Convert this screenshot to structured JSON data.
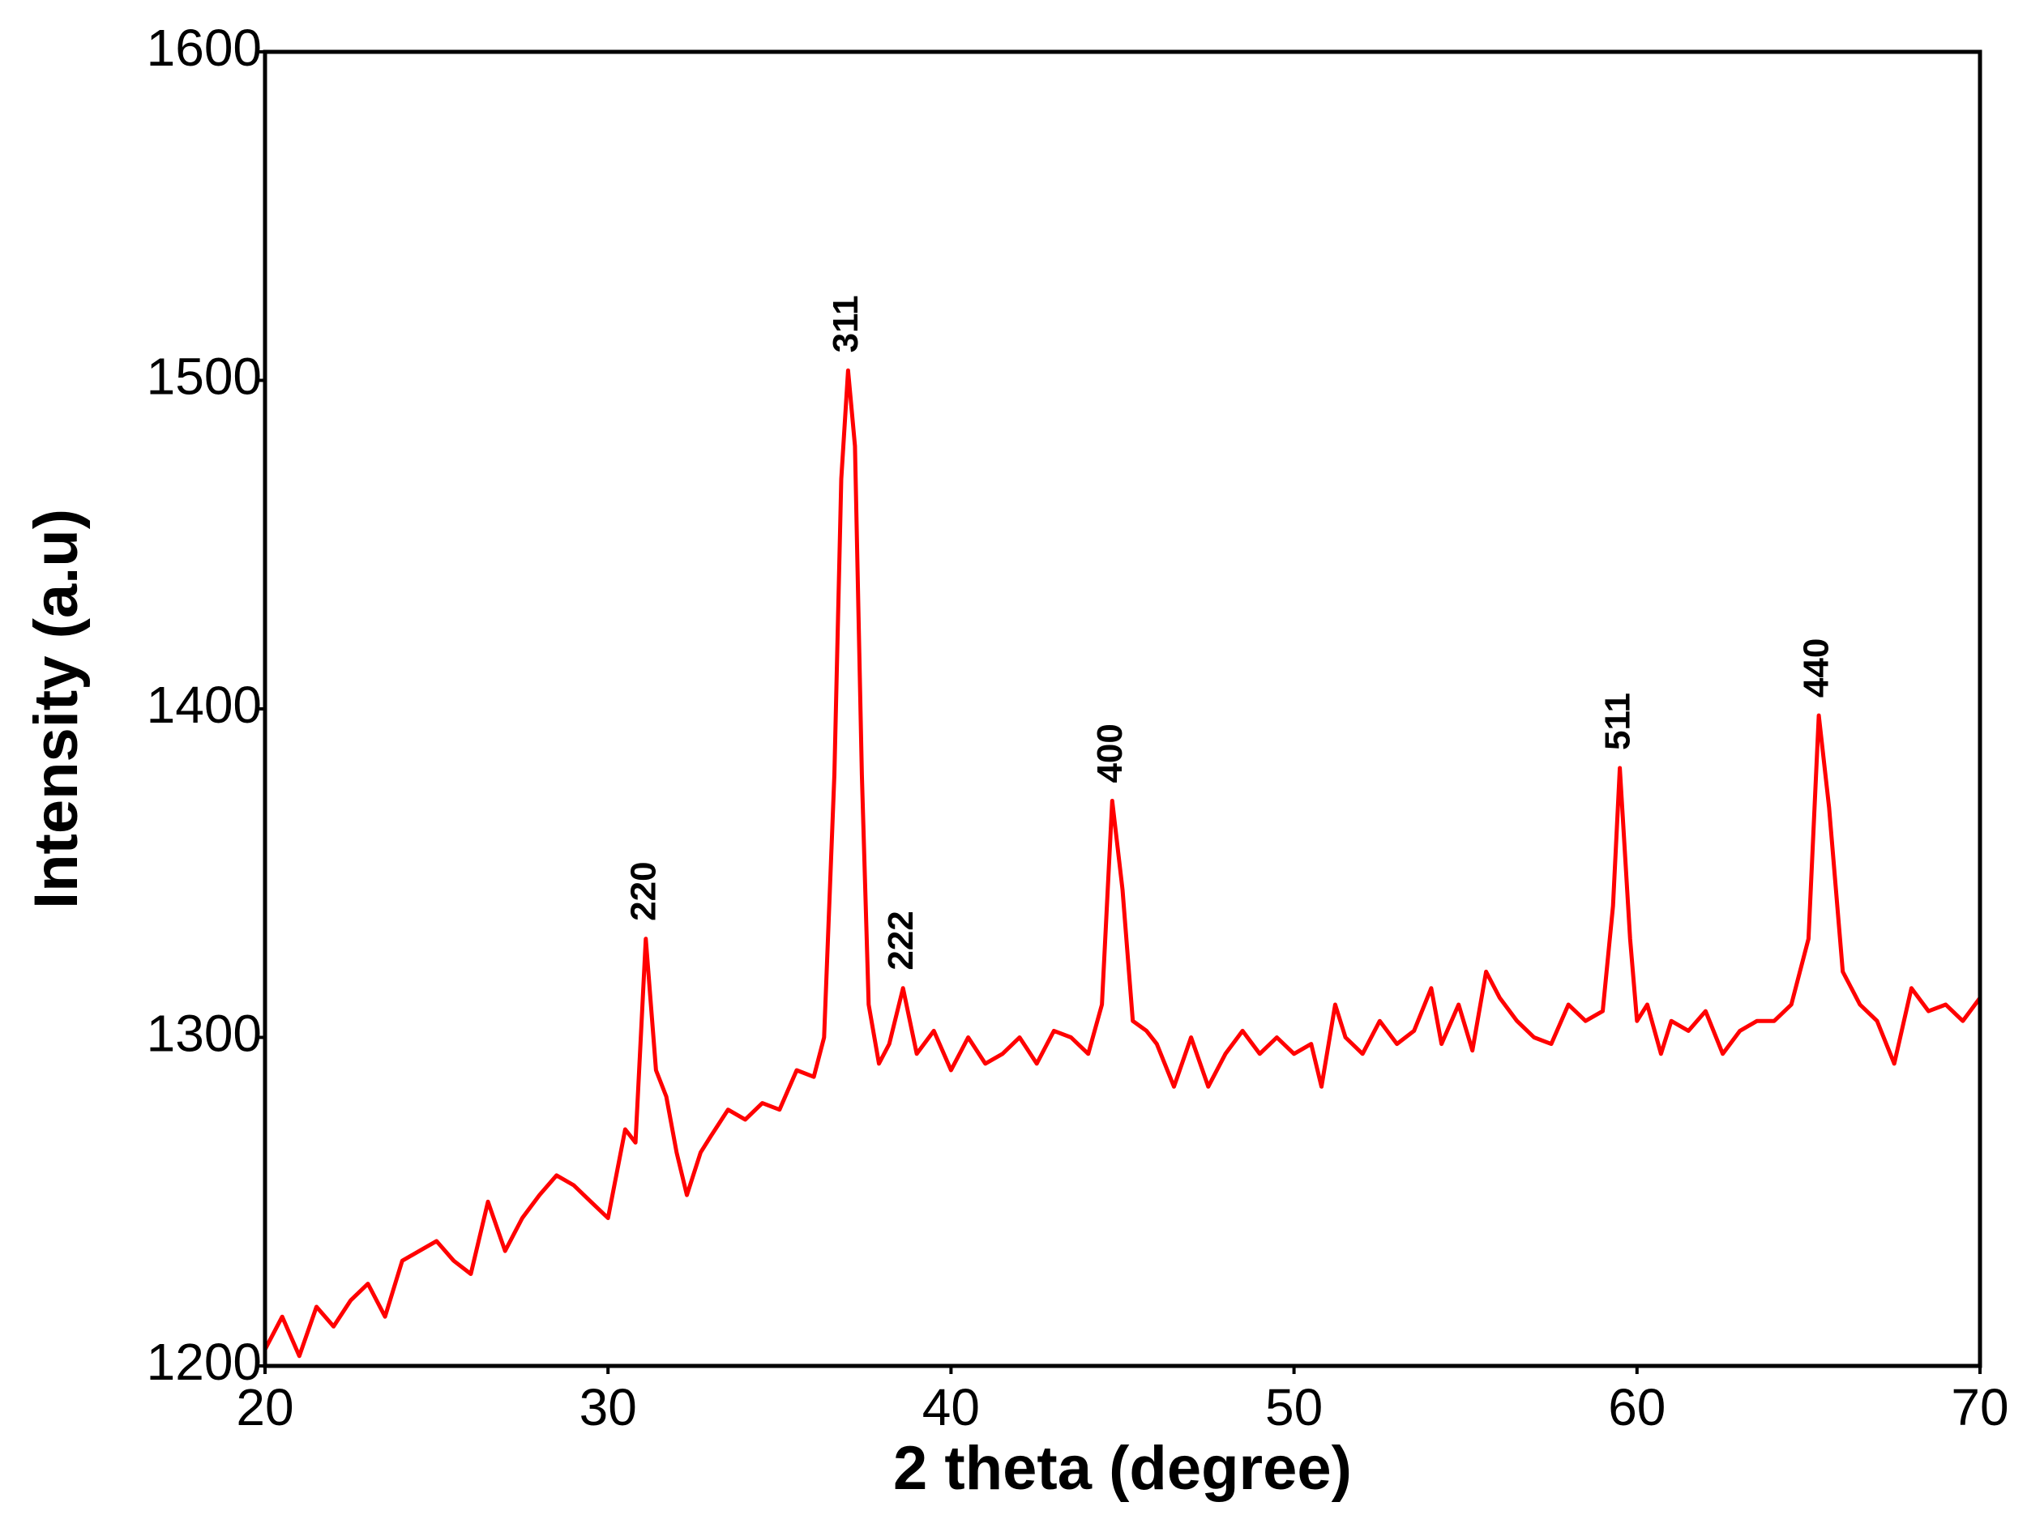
{
  "chart_data": {
    "type": "line",
    "xlabel": "2 theta (degree)",
    "ylabel": "Intensity (a.u)",
    "xlim": [
      20,
      70
    ],
    "xticks": [
      20,
      30,
      40,
      50,
      60,
      70
    ],
    "ylim": [
      1200,
      1600
    ],
    "yticks": [
      1200,
      1300,
      1400,
      1500,
      1600
    ],
    "series": [
      {
        "color": "#ff0000",
        "x": [
          20,
          20.5,
          21,
          21.5,
          22,
          22.5,
          23,
          23.5,
          24,
          24.5,
          25,
          25.5,
          26,
          26.5,
          27,
          27.5,
          28,
          28.5,
          29,
          29.5,
          30,
          30.5,
          30.8,
          31.1,
          31.4,
          31.7,
          32,
          32.3,
          32.7,
          33,
          33.5,
          34,
          34.5,
          35,
          35.5,
          36,
          36.3,
          36.6,
          36.8,
          37.0,
          37.2,
          37.4,
          37.6,
          37.9,
          38.2,
          38.6,
          39,
          39.5,
          40,
          40.5,
          41,
          41.5,
          42,
          42.5,
          43,
          43.5,
          44,
          44.4,
          44.7,
          45.0,
          45.3,
          45.7,
          46,
          46.5,
          47,
          47.5,
          48,
          48.5,
          49,
          49.5,
          50,
          50.5,
          50.8,
          51.2,
          51.5,
          52,
          52.5,
          53,
          53.5,
          54,
          54.3,
          54.8,
          55.2,
          55.6,
          56,
          56.5,
          57,
          57.5,
          58,
          58.5,
          59,
          59.3,
          59.5,
          59.8,
          60,
          60.3,
          60.7,
          61,
          61.5,
          62,
          62.5,
          63,
          63.5,
          64,
          64.5,
          65,
          65.3,
          65.6,
          66,
          66.5,
          67,
          67.5,
          68,
          68.5,
          69,
          69.5,
          70
        ],
        "values": [
          1205,
          1215,
          1203,
          1218,
          1212,
          1220,
          1225,
          1215,
          1232,
          1235,
          1238,
          1232,
          1228,
          1250,
          1235,
          1245,
          1252,
          1258,
          1255,
          1250,
          1245,
          1272,
          1268,
          1330,
          1290,
          1282,
          1265,
          1252,
          1265,
          1270,
          1278,
          1275,
          1280,
          1278,
          1290,
          1288,
          1300,
          1380,
          1470,
          1503,
          1480,
          1380,
          1310,
          1292,
          1298,
          1315,
          1295,
          1302,
          1290,
          1300,
          1292,
          1295,
          1300,
          1292,
          1302,
          1300,
          1295,
          1310,
          1372,
          1345,
          1305,
          1302,
          1298,
          1285,
          1300,
          1285,
          1295,
          1302,
          1295,
          1300,
          1295,
          1298,
          1285,
          1310,
          1300,
          1295,
          1305,
          1298,
          1302,
          1315,
          1298,
          1310,
          1296,
          1320,
          1312,
          1305,
          1300,
          1298,
          1310,
          1305,
          1308,
          1340,
          1382,
          1330,
          1305,
          1310,
          1295,
          1305,
          1302,
          1308,
          1295,
          1302,
          1305,
          1305,
          1310,
          1330,
          1398,
          1370,
          1320,
          1310,
          1305,
          1292,
          1315,
          1308,
          1310,
          1305,
          1312
        ]
      }
    ],
    "annotations": [
      {
        "text": "220",
        "x": 31.1,
        "y": 1330
      },
      {
        "text": "311",
        "x": 37.0,
        "y": 1503
      },
      {
        "text": "222",
        "x": 38.6,
        "y": 1315
      },
      {
        "text": "400",
        "x": 44.7,
        "y": 1372
      },
      {
        "text": "511",
        "x": 59.5,
        "y": 1382
      },
      {
        "text": "440",
        "x": 65.3,
        "y": 1398
      }
    ]
  }
}
